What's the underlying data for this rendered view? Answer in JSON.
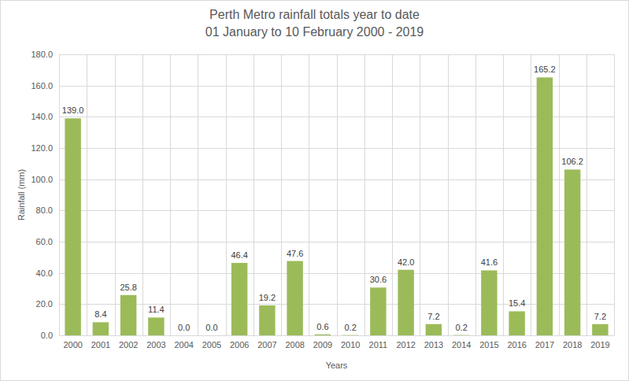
{
  "chart_data": {
    "type": "bar",
    "title": "Perth Metro rainfall totals year to date",
    "subtitle": "01 January to 10 February 2000 - 2019",
    "x_label": "Years",
    "y_label": "Rainfall (mm)",
    "categories": [
      "2000",
      "2001",
      "2002",
      "2003",
      "2004",
      "2005",
      "2006",
      "2007",
      "2008",
      "2009",
      "2010",
      "2011",
      "2012",
      "2013",
      "2014",
      "2015",
      "2016",
      "2017",
      "2018",
      "2019"
    ],
    "values": [
      139.0,
      8.4,
      25.8,
      11.4,
      0.0,
      0.0,
      46.4,
      19.2,
      47.6,
      0.6,
      0.2,
      30.6,
      42.0,
      7.2,
      0.2,
      41.6,
      15.4,
      165.2,
      106.2,
      7.2
    ],
    "value_labels": [
      "139.0",
      "8.4",
      "25.8",
      "11.4",
      "0.0",
      "0.0",
      "46.4",
      "19.2",
      "47.6",
      "0.6",
      "0.2",
      "30.6",
      "42.0",
      "7.2",
      "0.2",
      "41.6",
      "15.4",
      "165.2",
      "106.2",
      "7.2"
    ],
    "data_labels": true,
    "color": "#9bbb59",
    "ylim": [
      0,
      180
    ],
    "yticks": [
      {
        "value": 0,
        "label": "0.0"
      },
      {
        "value": 20,
        "label": "20.0"
      },
      {
        "value": 40,
        "label": "40.0"
      },
      {
        "value": 60,
        "label": "60.0"
      },
      {
        "value": 80,
        "label": "80.0"
      },
      {
        "value": 100,
        "label": "100.0"
      },
      {
        "value": 120,
        "label": "120.0"
      },
      {
        "value": 140,
        "label": "140.0"
      },
      {
        "value": 160,
        "label": "160.0"
      },
      {
        "value": 180,
        "label": "180.0"
      }
    ],
    "grid": true
  }
}
